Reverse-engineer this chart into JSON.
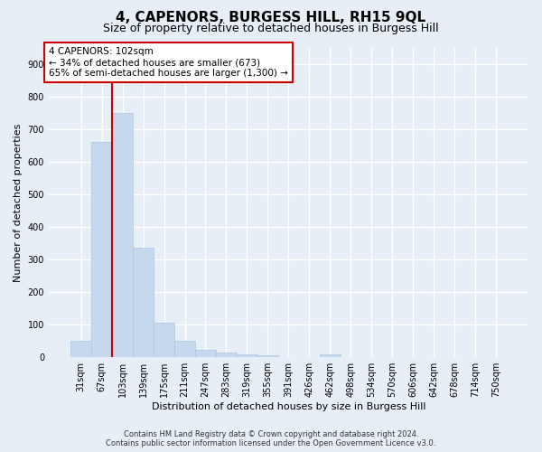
{
  "title": "4, CAPENORS, BURGESS HILL, RH15 9QL",
  "subtitle": "Size of property relative to detached houses in Burgess Hill",
  "xlabel": "Distribution of detached houses by size in Burgess Hill",
  "ylabel": "Number of detached properties",
  "footer_line1": "Contains HM Land Registry data © Crown copyright and database right 2024.",
  "footer_line2": "Contains public sector information licensed under the Open Government Licence v3.0.",
  "categories": [
    "31sqm",
    "67sqm",
    "103sqm",
    "139sqm",
    "175sqm",
    "211sqm",
    "247sqm",
    "283sqm",
    "319sqm",
    "355sqm",
    "391sqm",
    "426sqm",
    "462sqm",
    "498sqm",
    "534sqm",
    "570sqm",
    "606sqm",
    "642sqm",
    "678sqm",
    "714sqm",
    "750sqm"
  ],
  "values": [
    50,
    660,
    750,
    335,
    107,
    50,
    23,
    15,
    10,
    7,
    0,
    0,
    8,
    0,
    0,
    0,
    0,
    0,
    0,
    0,
    0
  ],
  "bar_color": "#c5d8ee",
  "bar_edge_color": "#aec6e0",
  "property_bin_index": 2,
  "annotation_text_line1": "4 CAPENORS: 102sqm",
  "annotation_text_line2": "← 34% of detached houses are smaller (673)",
  "annotation_text_line3": "65% of semi-detached houses are larger (1,300) →",
  "annotation_box_color": "#ffffff",
  "annotation_box_edge_color": "#cc0000",
  "vline_color": "#cc0000",
  "ylim": [
    0,
    950
  ],
  "yticks": [
    0,
    100,
    200,
    300,
    400,
    500,
    600,
    700,
    800,
    900
  ],
  "bg_color": "#e8eef5",
  "plot_bg_color": "#e8eef5",
  "grid_color": "#ffffff",
  "title_fontsize": 11,
  "subtitle_fontsize": 9,
  "tick_fontsize": 7,
  "ylabel_fontsize": 8,
  "xlabel_fontsize": 8,
  "annotation_fontsize": 7.5,
  "footer_fontsize": 6
}
